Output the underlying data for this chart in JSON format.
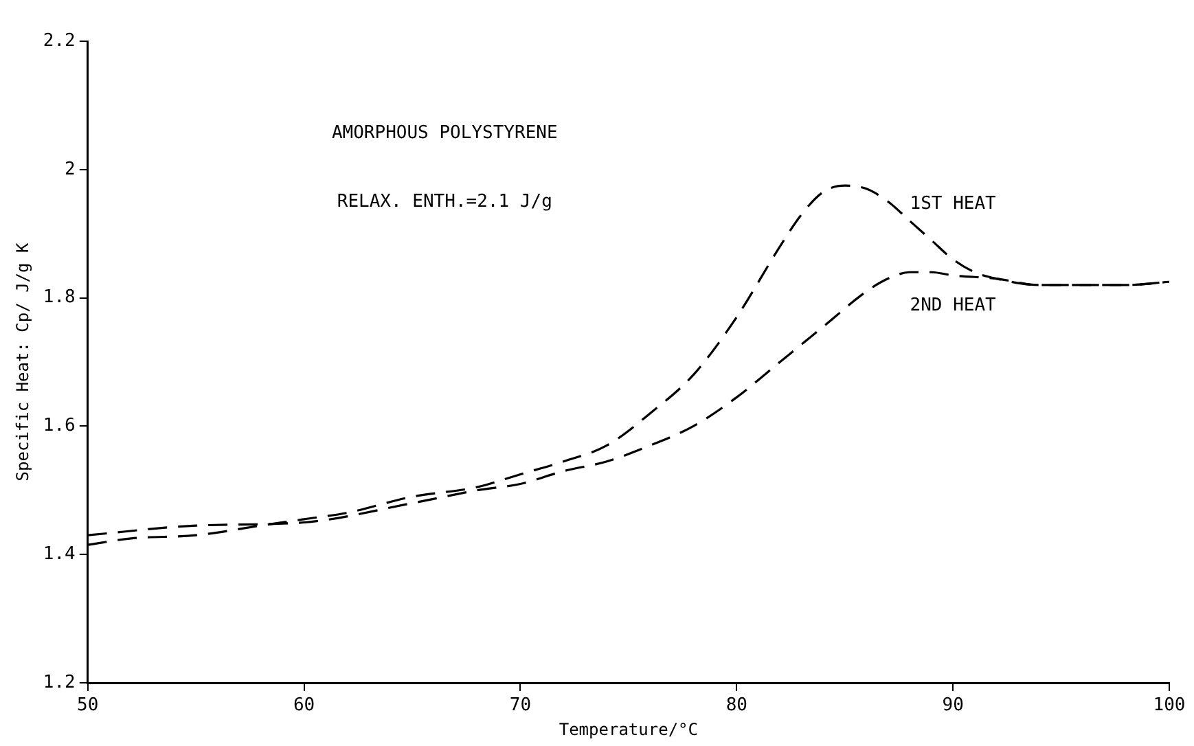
{
  "chart_data": {
    "type": "line",
    "xlabel": "Temperature/°C",
    "ylabel": "Specific Heat: Cp/ J/g K",
    "annotations": [
      "AMORPHOUS POLYSTYRENE",
      "RELAX. ENTH.=2.1 J/g"
    ],
    "xlim": [
      50,
      100
    ],
    "xticks": [
      50,
      60,
      70,
      80,
      90,
      100
    ],
    "ylim": [
      1.2,
      2.2
    ],
    "yticks": [
      1.2,
      1.4,
      1.6,
      1.8,
      2,
      2.2
    ],
    "grid": false,
    "legend": false,
    "marker": "none",
    "line_style": "dashed",
    "series": [
      {
        "name": "1ST HEAT",
        "color": "#000000",
        "x": [
          50,
          52,
          55,
          58,
          60,
          62,
          65,
          68,
          70,
          72,
          74,
          76,
          78,
          80,
          82,
          83,
          84,
          85,
          86,
          87,
          88,
          89,
          90,
          91,
          92,
          94,
          96,
          98,
          100
        ],
        "values": [
          1.415,
          1.425,
          1.43,
          1.445,
          1.455,
          1.465,
          1.49,
          1.505,
          1.525,
          1.545,
          1.57,
          1.62,
          1.68,
          1.77,
          1.88,
          1.93,
          1.965,
          1.975,
          1.97,
          1.95,
          1.92,
          1.89,
          1.86,
          1.84,
          1.83,
          1.82,
          1.82,
          1.82,
          1.825
        ]
      },
      {
        "name": "2ND HEAT",
        "color": "#000000",
        "x": [
          50,
          55,
          60,
          65,
          68,
          70,
          72,
          74,
          76,
          78,
          80,
          82,
          84,
          86,
          87,
          88,
          89,
          90,
          92,
          94,
          96,
          98,
          100
        ],
        "values": [
          1.43,
          1.445,
          1.45,
          1.48,
          1.5,
          1.51,
          1.53,
          1.545,
          1.57,
          1.6,
          1.645,
          1.7,
          1.755,
          1.81,
          1.83,
          1.84,
          1.84,
          1.835,
          1.83,
          1.82,
          1.82,
          1.82,
          1.825
        ]
      }
    ]
  }
}
